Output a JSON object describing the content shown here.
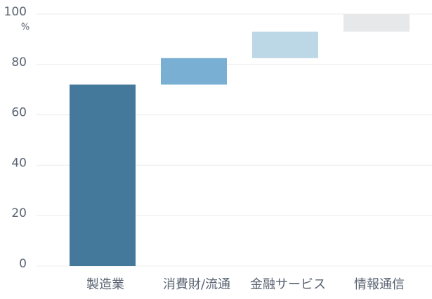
{
  "chart_data": {
    "type": "waterfall",
    "y_label": "%",
    "categories": [
      "製造業",
      "消費財/流通",
      "金融サービス",
      "情報通信"
    ],
    "values": [
      72,
      10.5,
      10.5,
      7
    ],
    "colors": [
      "#44799b",
      "#7aafd4",
      "#bcd7e5",
      "#e6e8ea"
    ],
    "ylim": [
      0,
      100
    ],
    "yticks": [
      0,
      20,
      40,
      60,
      80,
      100
    ],
    "grid": true
  }
}
